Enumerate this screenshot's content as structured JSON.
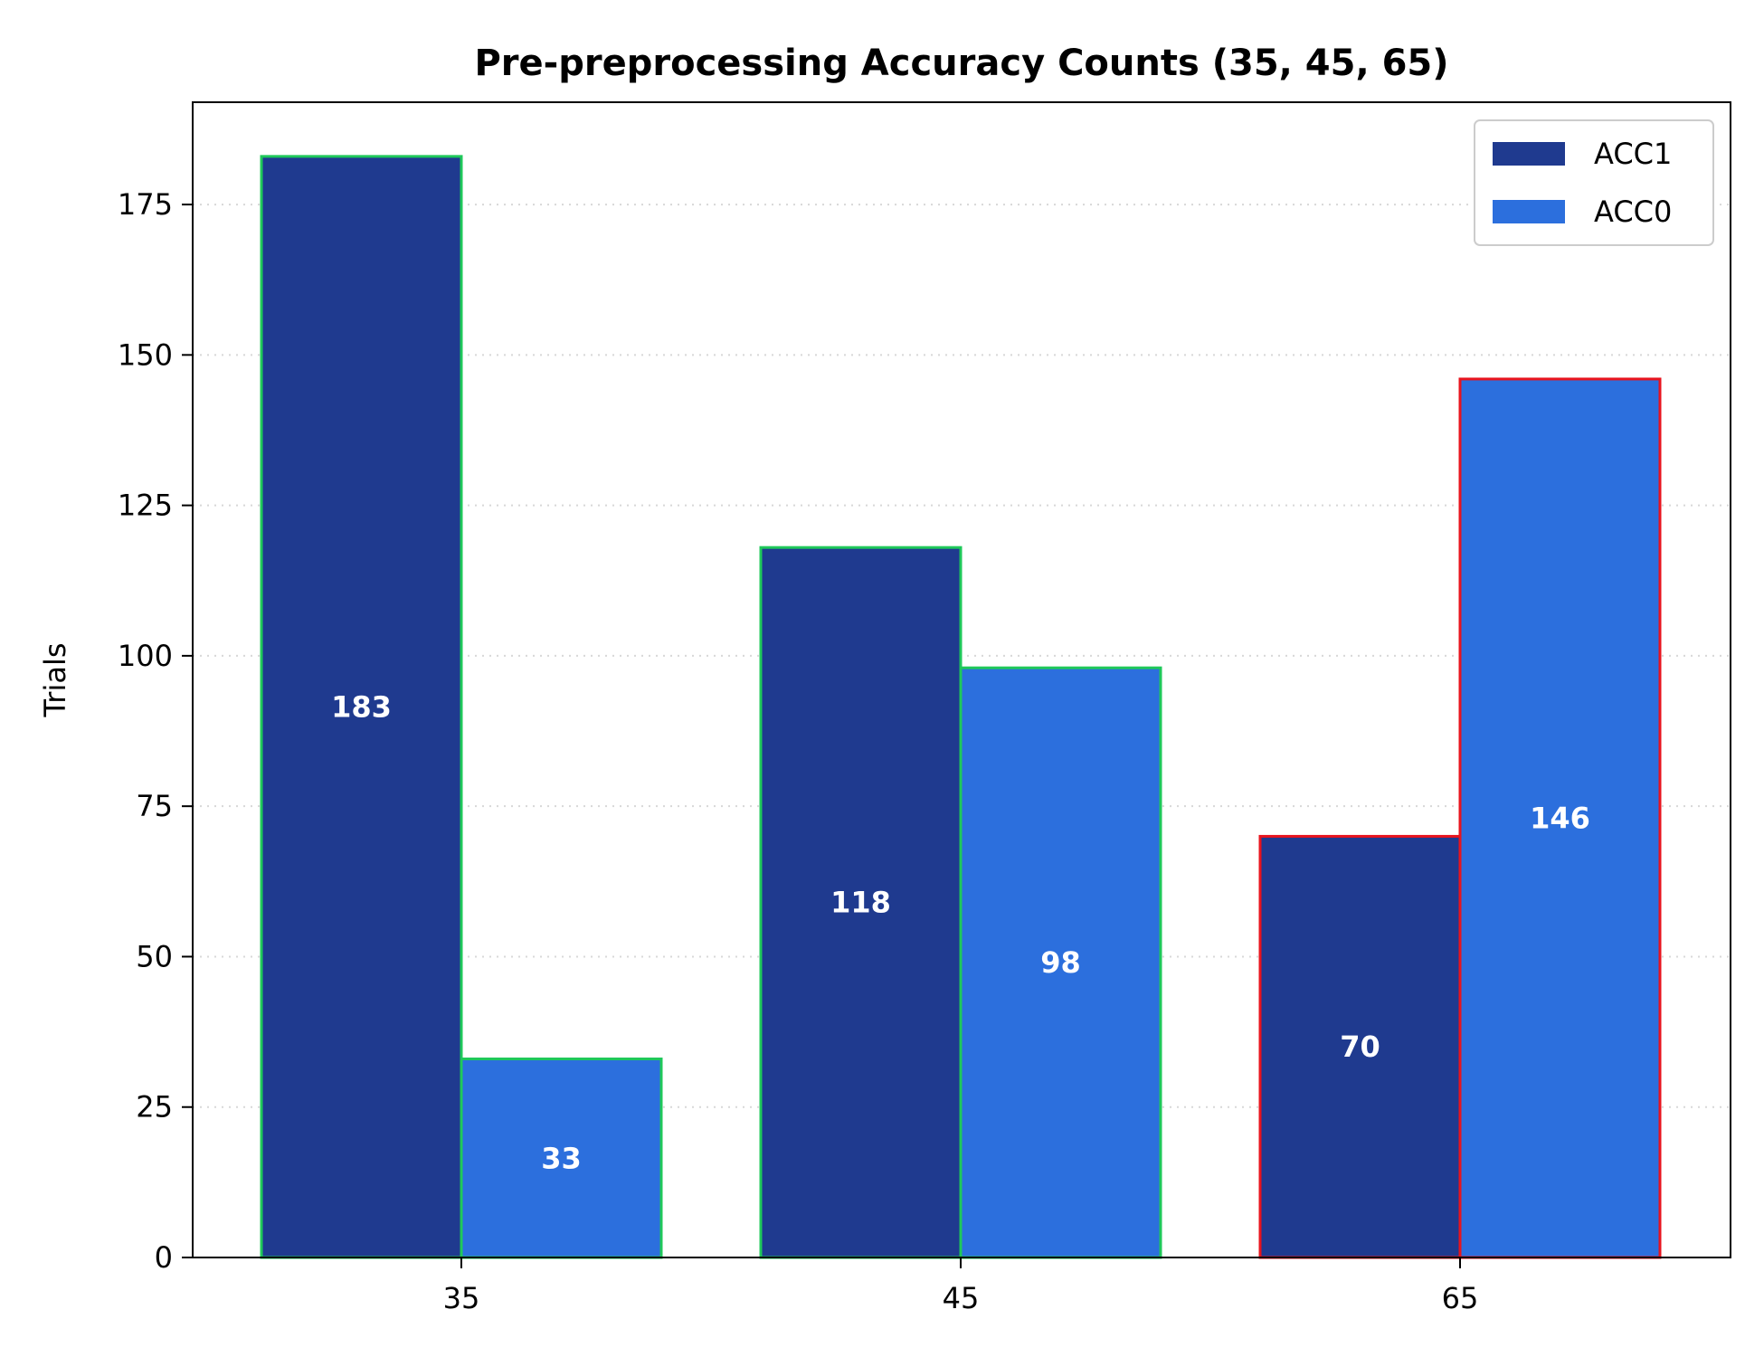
{
  "chart_data": {
    "type": "bar",
    "title": "Pre-preprocessing Accuracy Counts (35, 45, 65)",
    "xlabel": "",
    "ylabel": "Trials",
    "categories": [
      "35",
      "45",
      "65"
    ],
    "series": [
      {
        "name": "ACC1",
        "values": [
          183,
          118,
          70
        ],
        "color": "#1f3a8f"
      },
      {
        "name": "ACC0",
        "values": [
          33,
          98,
          146
        ],
        "color": "#2c6fdd"
      }
    ],
    "edge_colors": [
      "#1fc85a",
      "#1fc85a",
      "#e8141e"
    ],
    "ylim": [
      0,
      192
    ],
    "yticks": [
      0,
      25,
      50,
      75,
      100,
      125,
      150,
      175
    ],
    "grid": "horizontal dotted",
    "legend_position": "top-right"
  }
}
